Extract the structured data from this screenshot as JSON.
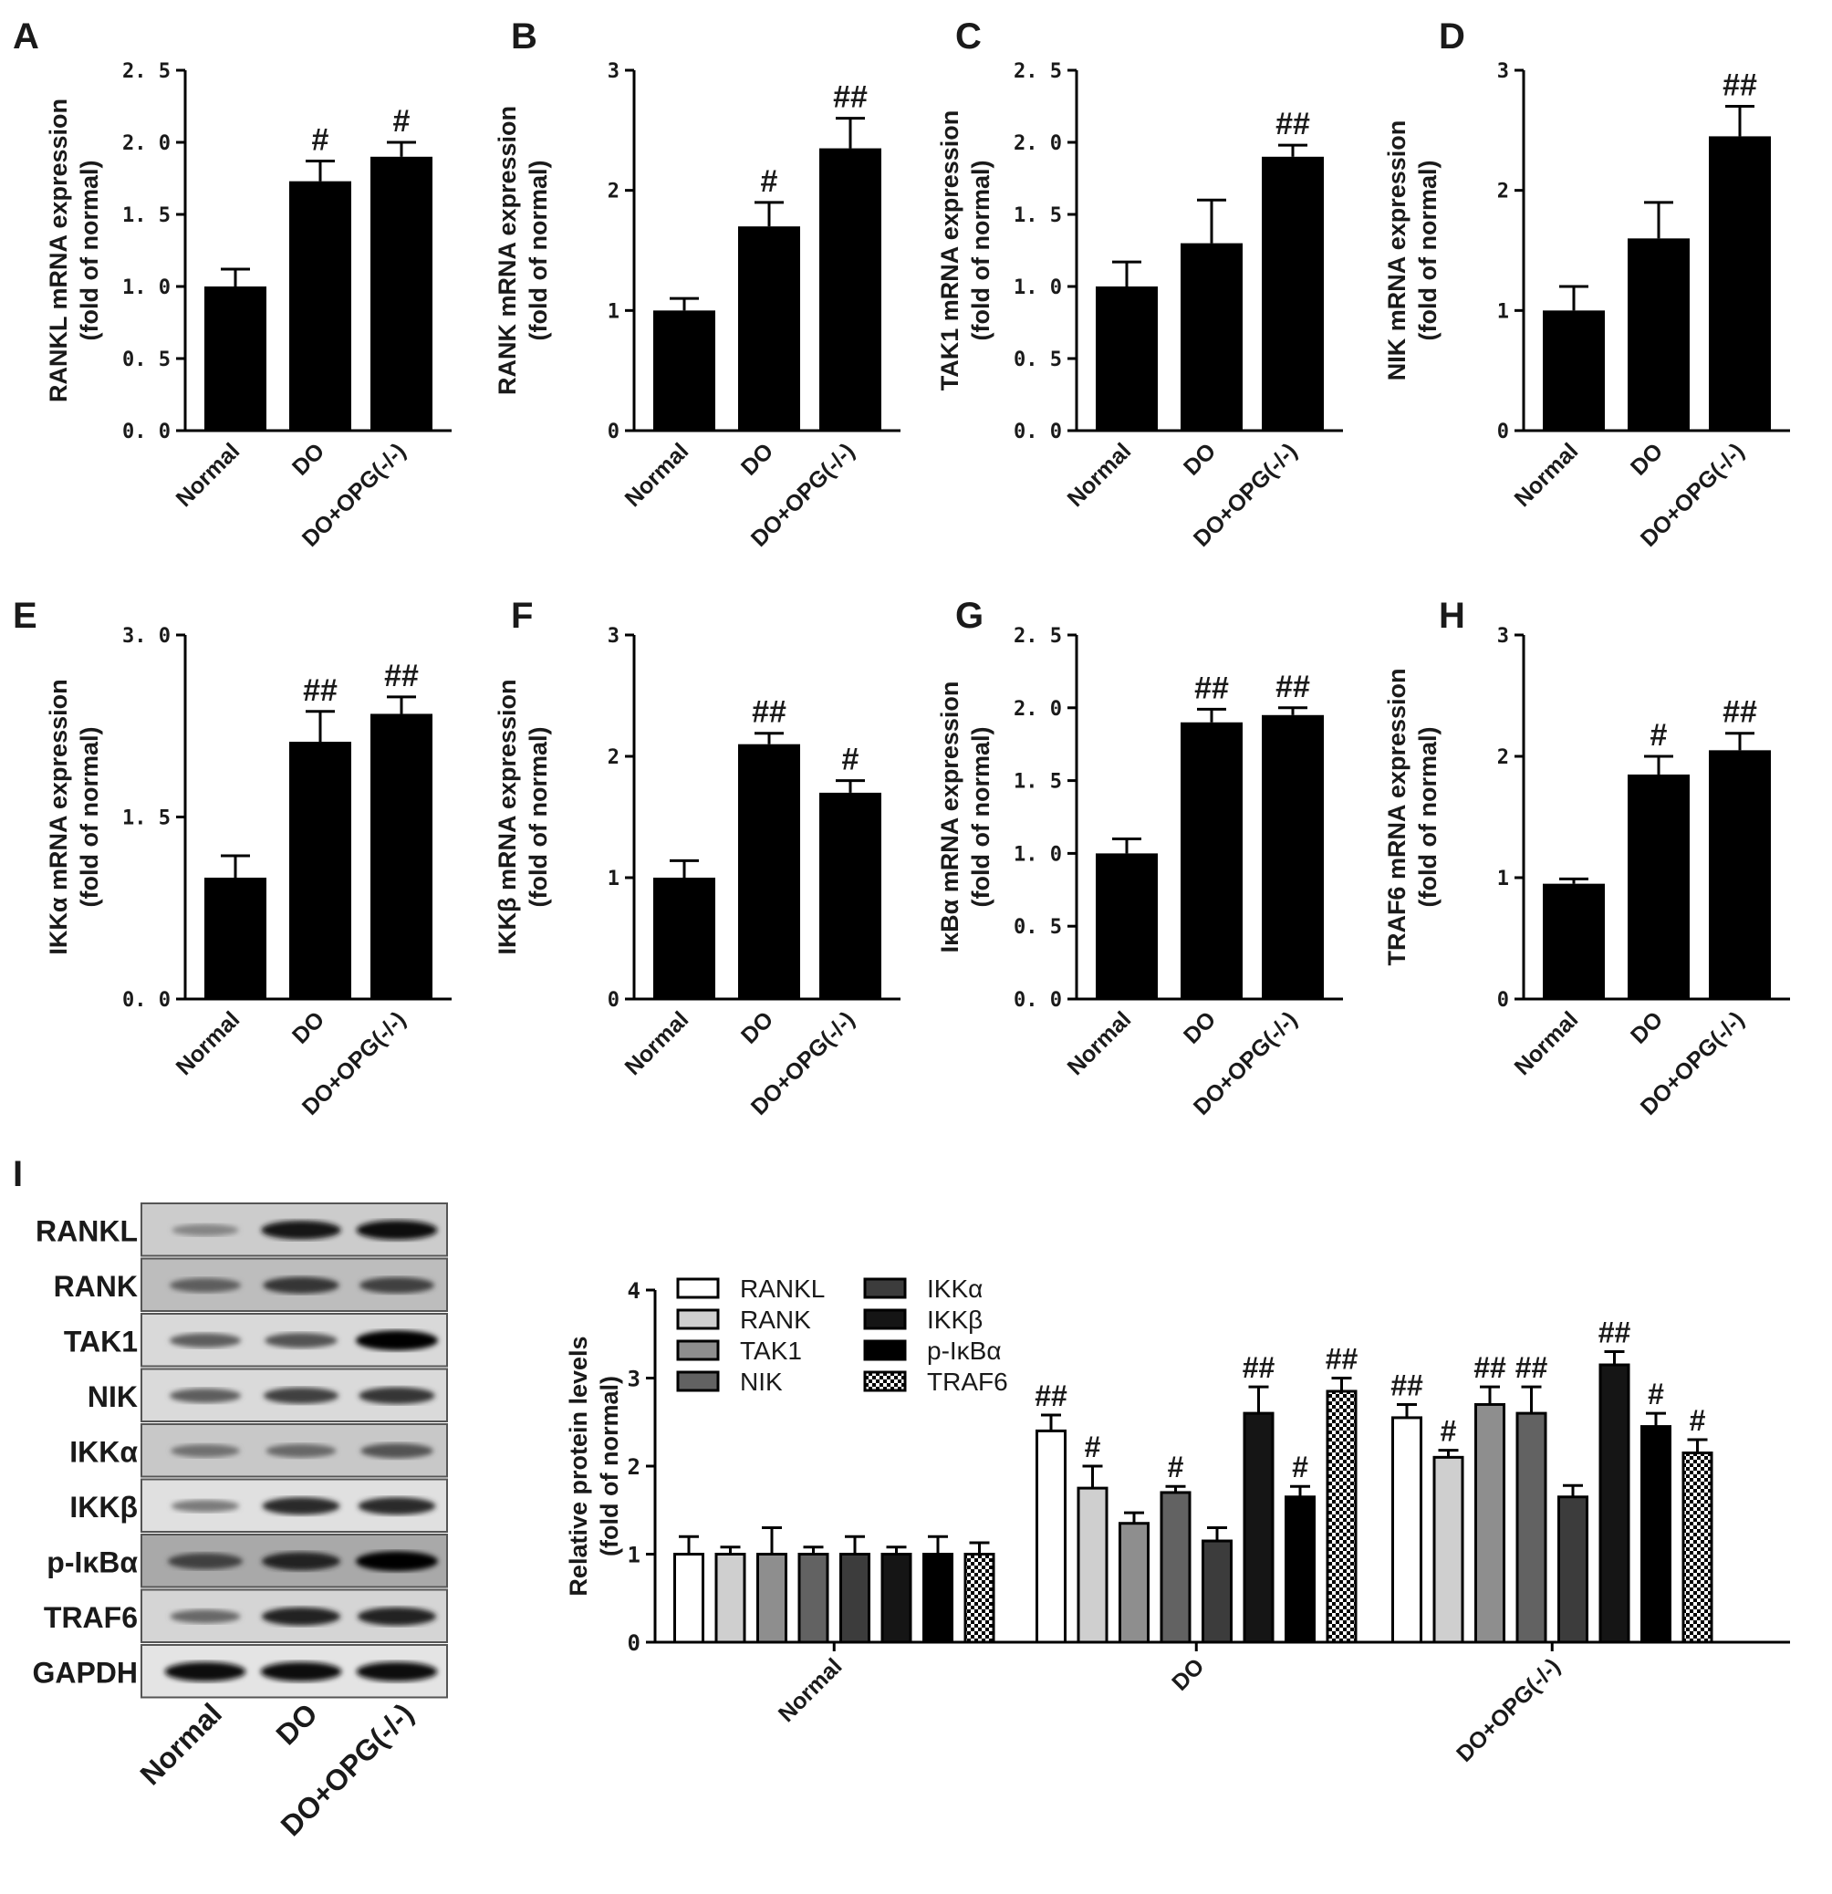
{
  "figure_colors": {
    "ink": "#000000",
    "background": "#ffffff"
  },
  "chart_data": [
    {
      "panel": "A",
      "type": "bar",
      "categories": [
        "Normal",
        "DO",
        "DO+OPG(-/-)"
      ],
      "values": [
        1.0,
        1.73,
        1.9
      ],
      "errors": [
        0.12,
        0.14,
        0.1
      ],
      "annotations": [
        "",
        "#",
        "#"
      ],
      "ylabel": [
        "RANKL mRNA expression",
        "(fold of normal)"
      ],
      "ylim": [
        0,
        2.5
      ],
      "yticks": [
        "0. 0",
        "0. 5",
        "1. 0",
        "1. 5",
        "2. 0",
        "2. 5"
      ]
    },
    {
      "panel": "B",
      "type": "bar",
      "categories": [
        "Normal",
        "DO",
        "DO+OPG(-/-)"
      ],
      "values": [
        1.0,
        1.7,
        2.35
      ],
      "errors": [
        0.1,
        0.2,
        0.25
      ],
      "annotations": [
        "",
        "#",
        "##"
      ],
      "ylabel": [
        "RANK mRNA expression",
        "(fold of normal)"
      ],
      "ylim": [
        0,
        3
      ],
      "yticks": [
        "0",
        "1",
        "2",
        "3"
      ]
    },
    {
      "panel": "C",
      "type": "bar",
      "categories": [
        "Normal",
        "DO",
        "DO+OPG(-/-)"
      ],
      "values": [
        1.0,
        1.3,
        1.9
      ],
      "errors": [
        0.17,
        0.3,
        0.08
      ],
      "annotations": [
        "",
        "",
        "##"
      ],
      "ylabel": [
        "TAK1 mRNA expression",
        "(fold of normal)"
      ],
      "ylim": [
        0,
        2.5
      ],
      "yticks": [
        "0. 0",
        "0. 5",
        "1. 0",
        "1. 5",
        "2. 0",
        "2. 5"
      ]
    },
    {
      "panel": "D",
      "type": "bar",
      "categories": [
        "Normal",
        "DO",
        "DO+OPG(-/-)"
      ],
      "values": [
        1.0,
        1.6,
        2.45
      ],
      "errors": [
        0.2,
        0.3,
        0.25
      ],
      "annotations": [
        "",
        "",
        "##"
      ],
      "ylabel": [
        "NIK mRNA expression",
        "(fold of normal)"
      ],
      "ylim": [
        0,
        3
      ],
      "yticks": [
        "0",
        "1",
        "2",
        "3"
      ]
    },
    {
      "panel": "E",
      "type": "bar",
      "categories": [
        "Normal",
        "DO",
        "DO+OPG(-/-)"
      ],
      "values": [
        1.0,
        2.12,
        2.35
      ],
      "errors": [
        0.18,
        0.25,
        0.14
      ],
      "annotations": [
        "",
        "##",
        "##"
      ],
      "ylabel": [
        "IKKα mRNA expression",
        "(fold of normal)"
      ],
      "ylim": [
        0,
        3
      ],
      "yticks": [
        "0. 0",
        "1. 5",
        "3. 0"
      ]
    },
    {
      "panel": "F",
      "type": "bar",
      "categories": [
        "Normal",
        "DO",
        "DO+OPG(-/-)"
      ],
      "values": [
        1.0,
        2.1,
        1.7
      ],
      "errors": [
        0.14,
        0.09,
        0.1
      ],
      "annotations": [
        "",
        "##",
        "#"
      ],
      "ylabel": [
        "IKKβ mRNA expression",
        "(fold of normal)"
      ],
      "ylim": [
        0,
        3
      ],
      "yticks": [
        "0",
        "1",
        "2",
        "3"
      ]
    },
    {
      "panel": "G",
      "type": "bar",
      "categories": [
        "Normal",
        "DO",
        "DO+OPG(-/-)"
      ],
      "values": [
        1.0,
        1.9,
        1.95
      ],
      "errors": [
        0.1,
        0.09,
        0.05
      ],
      "annotations": [
        "",
        "##",
        "##"
      ],
      "ylabel": [
        "IκBα mRNA expression",
        "(fold of normal)"
      ],
      "ylim": [
        0,
        2.5
      ],
      "yticks": [
        "0. 0",
        "0. 5",
        "1. 0",
        "1. 5",
        "2. 0",
        "2. 5"
      ]
    },
    {
      "panel": "H",
      "type": "bar",
      "categories": [
        "Normal",
        "DO",
        "DO+OPG(-/-)"
      ],
      "values": [
        0.95,
        1.85,
        2.05
      ],
      "errors": [
        0.04,
        0.15,
        0.14
      ],
      "annotations": [
        "",
        "#",
        "##"
      ],
      "ylabel": [
        "TRAF6 mRNA expression",
        "(fold of normal)"
      ],
      "ylim": [
        0,
        3
      ],
      "yticks": [
        "0",
        "1",
        "2",
        "3"
      ]
    },
    {
      "panel": "I",
      "type": "bar",
      "categories": [
        "Normal",
        "DO",
        "DO+OPG(-/-)"
      ],
      "series": [
        {
          "name": "RANKL",
          "values": [
            1.0,
            2.4,
            2.55
          ],
          "errors": [
            0.2,
            0.18,
            0.15
          ],
          "annotations": [
            "",
            "##",
            "##"
          ]
        },
        {
          "name": "RANK",
          "values": [
            1.0,
            1.75,
            2.1
          ],
          "errors": [
            0.08,
            0.25,
            0.08
          ],
          "annotations": [
            "",
            "#",
            "#"
          ]
        },
        {
          "name": "TAK1",
          "values": [
            1.0,
            1.35,
            2.7
          ],
          "errors": [
            0.3,
            0.12,
            0.2
          ],
          "annotations": [
            "",
            "",
            "##"
          ]
        },
        {
          "name": "NIK",
          "values": [
            1.0,
            1.7,
            2.6
          ],
          "errors": [
            0.08,
            0.07,
            0.3
          ],
          "annotations": [
            "",
            "#",
            "##"
          ]
        },
        {
          "name": "IKKα",
          "values": [
            1.0,
            1.15,
            1.65
          ],
          "errors": [
            0.2,
            0.15,
            0.13
          ],
          "annotations": [
            "",
            "",
            ""
          ]
        },
        {
          "name": "IKKβ",
          "values": [
            1.0,
            2.6,
            3.15
          ],
          "errors": [
            0.08,
            0.3,
            0.15
          ],
          "annotations": [
            "",
            "##",
            "##"
          ]
        },
        {
          "name": "p-IκBα",
          "values": [
            1.0,
            1.65,
            2.45
          ],
          "errors": [
            0.2,
            0.12,
            0.15
          ],
          "annotations": [
            "",
            "#",
            "#"
          ]
        },
        {
          "name": "TRAF6",
          "values": [
            1.0,
            2.85,
            2.15
          ],
          "errors": [
            0.13,
            0.15,
            0.15
          ],
          "annotations": [
            "",
            "##",
            "#"
          ]
        }
      ],
      "series_colors": [
        "#ffffff",
        "#cfcfcf",
        "#8e8e8e",
        "#626262",
        "#3c3c3c",
        "#151515",
        "#000000",
        "checker"
      ],
      "legend": "top-left",
      "ylabel": [
        "Relative protein levels",
        "(fold of normal)"
      ],
      "ylim": [
        0,
        4
      ],
      "yticks": [
        "0",
        "1",
        "2",
        "3",
        "4"
      ]
    }
  ],
  "blot": {
    "proteins": [
      "RANKL",
      "RANK",
      "TAK1",
      "NIK",
      "IKKα",
      "IKKβ",
      "p-IκBα",
      "TRAF6",
      "GAPDH"
    ],
    "lanes": [
      "Normal",
      "DO",
      "DO+OPG(-/-)"
    ],
    "band_intensity": [
      [
        0.35,
        0.9,
        0.95
      ],
      [
        0.55,
        0.75,
        0.7
      ],
      [
        0.55,
        0.6,
        1.0
      ],
      [
        0.55,
        0.7,
        0.75
      ],
      [
        0.45,
        0.5,
        0.6
      ],
      [
        0.4,
        0.8,
        0.8
      ],
      [
        0.7,
        0.85,
        1.0
      ],
      [
        0.5,
        0.85,
        0.85
      ],
      [
        0.95,
        0.95,
        0.95
      ]
    ],
    "panel_shades": [
      "#cccccc",
      "#bdbdbd",
      "#d9d9d9",
      "#dadada",
      "#c8c8c8",
      "#e0e0e0",
      "#a9a9a9",
      "#d5d5d5",
      "#e4e4e4"
    ]
  }
}
